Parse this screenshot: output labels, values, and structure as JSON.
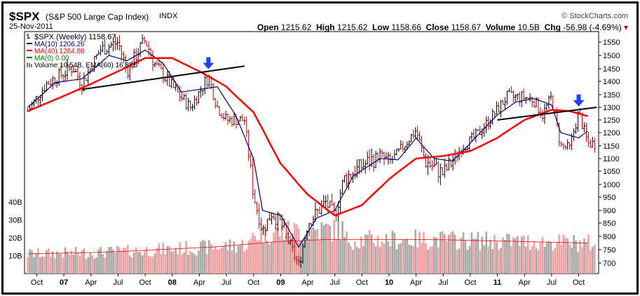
{
  "header": {
    "symbol": "$SPX",
    "name": "(S&P 500 Large Cap Index)",
    "exchange": "INDX",
    "date": "25-Nov-2011",
    "brand": "© StockCharts.com",
    "open_label": "Open",
    "open": "1215.62",
    "high_label": "High",
    "high": "1215.62",
    "low_label": "Low",
    "low": "1158.66",
    "close_label": "Close",
    "close": "1158.67",
    "volume_label": "Volume",
    "volume": "10.5B",
    "chg_label": "Chg",
    "chg": "-56.98 (-4.69%)",
    "chg_arrow": "▾"
  },
  "legend": [
    {
      "text": "$SPX (Weekly) 1158.67",
      "color": "#000000",
      "icon": "bar-icon"
    },
    {
      "text": "MA(10) 1206.26",
      "color": "#000080",
      "icon": "line-icon"
    },
    {
      "text": "MA(40) 1264.88",
      "color": "#ff0000",
      "icon": "line-icon"
    },
    {
      "text": "MA(0) 0.00",
      "color": "#008000",
      "icon": "line-icon"
    },
    {
      "text": "Volume 10.54B, EMA(60) 16.87B",
      "color": "#808080",
      "icon": "volume-icon"
    }
  ],
  "chart_data": {
    "type": "line",
    "title": "$SPX (Weekly)",
    "x_ticks": [
      "Oct",
      "07",
      "Apr",
      "Jul",
      "Oct",
      "08",
      "Apr",
      "Jul",
      "Oct",
      "09",
      "Apr",
      "Jul",
      "Oct",
      "10",
      "Apr",
      "Jul",
      "Oct",
      "11",
      "Apr",
      "Jul",
      "Oct"
    ],
    "x_range": [
      "2006-09",
      "2011-11"
    ],
    "y_price_ticks": [
      700,
      750,
      800,
      850,
      900,
      950,
      1000,
      1050,
      1100,
      1150,
      1200,
      1250,
      1300,
      1350,
      1400,
      1450,
      1500,
      1550
    ],
    "y_price_range": [
      650,
      1580
    ],
    "y_volume_tick_labels": [
      "10B",
      "20B",
      "30B",
      "40B"
    ],
    "y_volume_ticks": [
      10,
      20,
      30,
      40
    ],
    "series": [
      {
        "name": "$SPX (Weekly)",
        "color": "#000000",
        "kind": "price-bars",
        "points": [
          [
            "2006-09",
            1285
          ],
          [
            "2006-11",
            1390
          ],
          [
            "2007-02",
            1455
          ],
          [
            "2007-03",
            1390
          ],
          [
            "2007-05",
            1520
          ],
          [
            "2007-07",
            1550
          ],
          [
            "2007-08",
            1440
          ],
          [
            "2007-10",
            1560
          ],
          [
            "2007-11",
            1470
          ],
          [
            "2008-01",
            1380
          ],
          [
            "2008-03",
            1300
          ],
          [
            "2008-05",
            1420
          ],
          [
            "2008-06",
            1300
          ],
          [
            "2008-07",
            1250
          ],
          [
            "2008-09",
            1250
          ],
          [
            "2008-10",
            960
          ],
          [
            "2008-11",
            820
          ],
          [
            "2008-12",
            890
          ],
          [
            "2009-01",
            850
          ],
          [
            "2009-03",
            690
          ],
          [
            "2009-04",
            850
          ],
          [
            "2009-06",
            930
          ],
          [
            "2009-07",
            880
          ],
          [
            "2009-08",
            1020
          ],
          [
            "2009-10",
            1070
          ],
          [
            "2009-12",
            1115
          ],
          [
            "2010-01",
            1080
          ],
          [
            "2010-04",
            1210
          ],
          [
            "2010-05",
            1090
          ],
          [
            "2010-07",
            1040
          ],
          [
            "2010-09",
            1140
          ],
          [
            "2010-11",
            1200
          ],
          [
            "2011-01",
            1290
          ],
          [
            "2011-02",
            1340
          ],
          [
            "2011-04",
            1340
          ],
          [
            "2011-05",
            1330
          ],
          [
            "2011-06",
            1270
          ],
          [
            "2011-07",
            1340
          ],
          [
            "2011-08",
            1150
          ],
          [
            "2011-09",
            1140
          ],
          [
            "2011-10",
            1280
          ],
          [
            "2011-11",
            1159
          ]
        ]
      },
      {
        "name": "MA(10)",
        "color": "#000080",
        "kind": "line",
        "points": [
          [
            "2006-09",
            1300
          ],
          [
            "2006-12",
            1395
          ],
          [
            "2007-03",
            1410
          ],
          [
            "2007-06",
            1500
          ],
          [
            "2007-08",
            1480
          ],
          [
            "2007-10",
            1520
          ],
          [
            "2007-12",
            1470
          ],
          [
            "2008-02",
            1360
          ],
          [
            "2008-04",
            1370
          ],
          [
            "2008-06",
            1380
          ],
          [
            "2008-08",
            1270
          ],
          [
            "2008-10",
            1100
          ],
          [
            "2008-11",
            900
          ],
          [
            "2009-01",
            880
          ],
          [
            "2009-03",
            760
          ],
          [
            "2009-05",
            870
          ],
          [
            "2009-07",
            900
          ],
          [
            "2009-09",
            1030
          ],
          [
            "2009-12",
            1100
          ],
          [
            "2010-02",
            1095
          ],
          [
            "2010-04",
            1180
          ],
          [
            "2010-06",
            1100
          ],
          [
            "2010-08",
            1090
          ],
          [
            "2010-10",
            1160
          ],
          [
            "2011-01",
            1270
          ],
          [
            "2011-03",
            1320
          ],
          [
            "2011-05",
            1335
          ],
          [
            "2011-07",
            1310
          ],
          [
            "2011-08",
            1200
          ],
          [
            "2011-10",
            1180
          ],
          [
            "2011-11",
            1206
          ]
        ]
      },
      {
        "name": "MA(40)",
        "color": "#ff0000",
        "kind": "line",
        "points": [
          [
            "2006-09",
            1285
          ],
          [
            "2006-12",
            1330
          ],
          [
            "2007-04",
            1390
          ],
          [
            "2007-07",
            1440
          ],
          [
            "2007-10",
            1490
          ],
          [
            "2008-01",
            1490
          ],
          [
            "2008-04",
            1440
          ],
          [
            "2008-07",
            1380
          ],
          [
            "2008-10",
            1280
          ],
          [
            "2009-01",
            1080
          ],
          [
            "2009-04",
            960
          ],
          [
            "2009-07",
            880
          ],
          [
            "2009-10",
            920
          ],
          [
            "2010-01",
            1020
          ],
          [
            "2010-04",
            1100
          ],
          [
            "2010-07",
            1110
          ],
          [
            "2010-10",
            1130
          ],
          [
            "2011-01",
            1180
          ],
          [
            "2011-04",
            1250
          ],
          [
            "2011-07",
            1290
          ],
          [
            "2011-09",
            1285
          ],
          [
            "2011-11",
            1265
          ]
        ]
      },
      {
        "name": "Volume",
        "color": "#808080",
        "kind": "volume",
        "unit": "B"
      },
      {
        "name": "EMA(60)",
        "color": "#ff0000",
        "kind": "volume-line",
        "points": [
          [
            "2006-09",
            11
          ],
          [
            "2007-06",
            12
          ],
          [
            "2008-06",
            15
          ],
          [
            "2009-01",
            18
          ],
          [
            "2009-06",
            19
          ],
          [
            "2010-06",
            19
          ],
          [
            "2011-03",
            18
          ],
          [
            "2011-11",
            17
          ]
        ]
      }
    ],
    "annotations": [
      {
        "type": "trendline",
        "color": "#000000",
        "from": [
          "2007-03",
          1370
        ],
        "to": [
          "2008-09",
          1460
        ]
      },
      {
        "type": "trendline",
        "color": "#000000",
        "from": [
          "2011-01",
          1250
        ],
        "to": [
          "2011-12",
          1300
        ]
      },
      {
        "type": "arrow-down",
        "color": "#1f3fff",
        "at": [
          "2008-05",
          1440
        ]
      },
      {
        "type": "arrow-down",
        "color": "#1f3fff",
        "at": [
          "2011-10",
          1295
        ]
      }
    ]
  }
}
